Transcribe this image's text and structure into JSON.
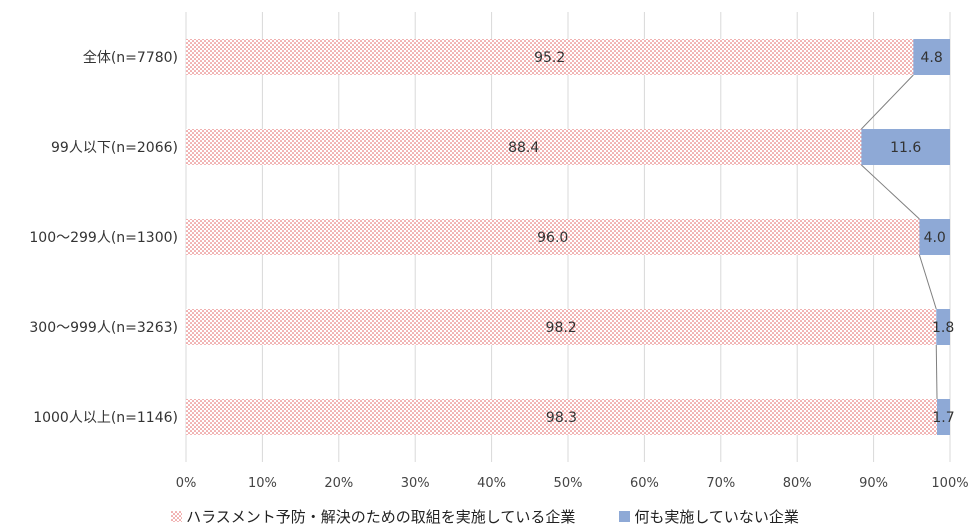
{
  "chart_data": {
    "type": "bar",
    "orientation": "horizontal",
    "stacked": true,
    "categories": [
      "全体(n=7780)",
      "99人以下(n=2066)",
      "100～299人(n=1300)",
      "300～999人(n=3263)",
      "1000人以上(n=1146)"
    ],
    "series": [
      {
        "name": "ハラスメント予防・解決のための取組を実施している企業",
        "values": [
          95.2,
          88.4,
          96.0,
          98.2,
          98.3
        ],
        "labels": [
          "95.2",
          "88.4",
          "96.0",
          "98.2",
          "98.3"
        ],
        "color": "#e05050",
        "pattern": "dotted"
      },
      {
        "name": "何も実施していない企業",
        "values": [
          4.8,
          11.6,
          4.0,
          1.8,
          1.7
        ],
        "labels": [
          "4.8",
          "11.6",
          "4.0",
          "1.8",
          "1.7"
        ],
        "color": "#8ea9d6",
        "pattern": "solid"
      }
    ],
    "xlim": [
      0,
      100
    ],
    "xticks": [
      "0%",
      "10%",
      "20%",
      "30%",
      "40%",
      "50%",
      "60%",
      "70%",
      "80%",
      "90%",
      "100%"
    ],
    "grid": true,
    "series_lines": true,
    "legend_position": "bottom"
  }
}
